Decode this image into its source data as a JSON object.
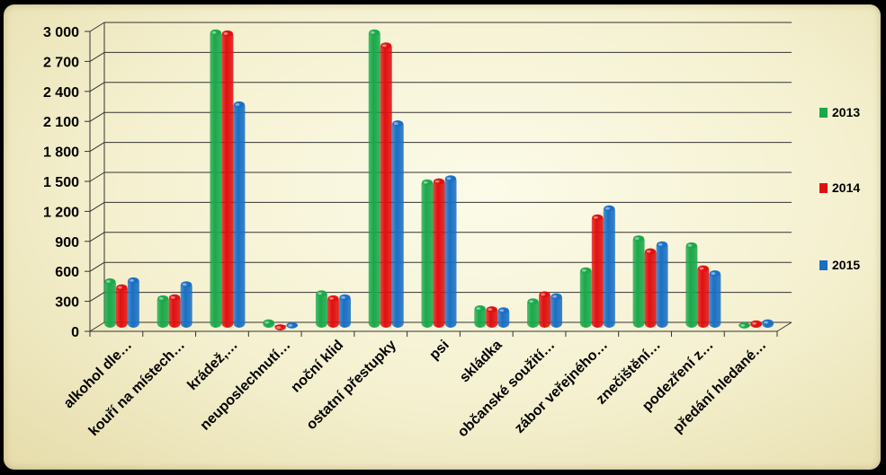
{
  "chart_data": {
    "type": "bar",
    "title": "",
    "xlabel": "",
    "ylabel": "",
    "ylim": [
      0,
      3000
    ],
    "yticks": [
      0,
      300,
      600,
      900,
      1200,
      1500,
      1800,
      2100,
      2400,
      2700,
      3000
    ],
    "ytick_labels": [
      "0",
      "300",
      "600",
      "900",
      "1 200",
      "1 500",
      "1 800",
      "2 100",
      "2 400",
      "2 700",
      "3 000"
    ],
    "grid": true,
    "legend_position": "right",
    "categories": [
      "alkohol dle…",
      "kouří na místech…",
      "krádež,…",
      "neuposlechnutí…",
      "noční klid",
      "ostatní přestupky",
      "psi",
      "skládka",
      "občanské soužití…",
      "zábor veřejného…",
      "znečištění…",
      "podezření z…",
      "předání hledané…"
    ],
    "series": [
      {
        "name": "2013",
        "color": "#1aa84a",
        "values": [
          490,
          320,
          2980,
          80,
          370,
          2980,
          1480,
          220,
          290,
          600,
          920,
          850,
          50
        ]
      },
      {
        "name": "2014",
        "color": "#e01010",
        "values": [
          430,
          330,
          2970,
          30,
          320,
          2850,
          1490,
          210,
          360,
          1130,
          790,
          620,
          70
        ]
      },
      {
        "name": "2015",
        "color": "#1a6fc4",
        "values": [
          500,
          460,
          2260,
          50,
          330,
          2070,
          1520,
          200,
          340,
          1220,
          860,
          570,
          80
        ]
      }
    ]
  }
}
